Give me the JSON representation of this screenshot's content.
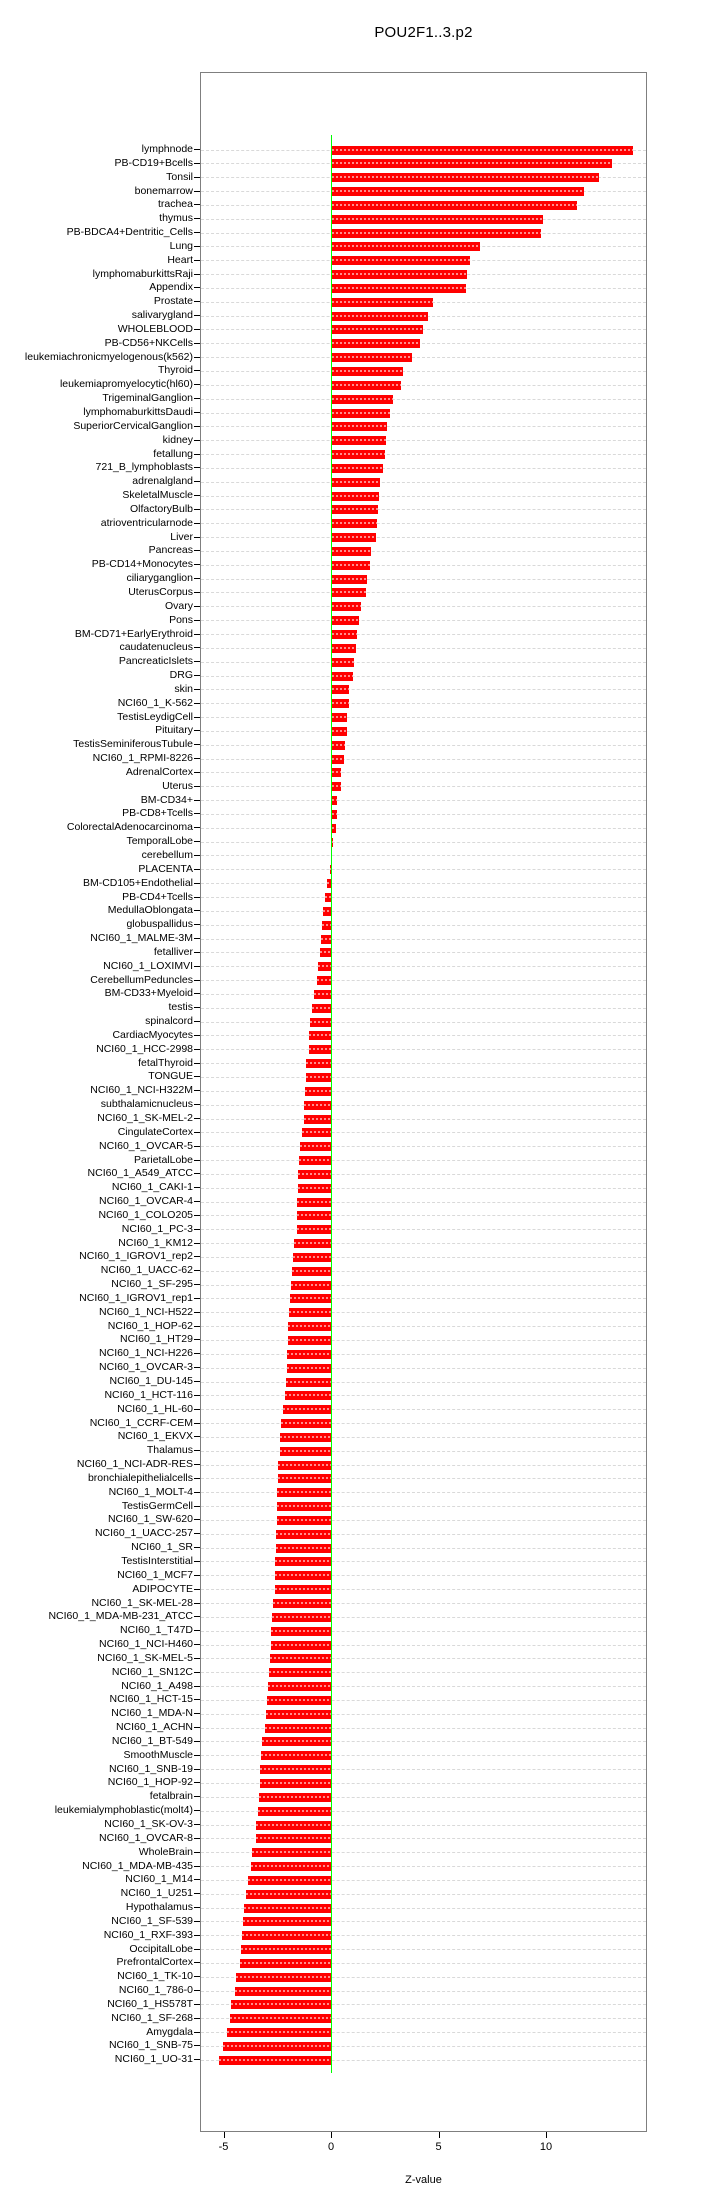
{
  "page": {
    "background": "#ffffff"
  },
  "chart_data": {
    "type": "bar",
    "orientation": "horizontal",
    "title": "POU2F1..3.p2",
    "xlabel": "Z-value",
    "x_tick_values": [
      -5,
      0,
      5,
      10
    ],
    "x_tick_labels": [
      "-5",
      "0",
      "5",
      "10"
    ],
    "xlim": [
      -6.1,
      14.7
    ],
    "grid": true,
    "legend": "none",
    "colors": {
      "bar": "#ff0000",
      "zero_line": "#00ff00",
      "grid": "#d9d9d9",
      "axis": "#7f7f7f",
      "text": "#000000"
    },
    "categories": [
      "lymphnode",
      "PB-CD19+Bcells",
      "Tonsil",
      "bonemarrow",
      "trachea",
      "thymus",
      "PB-BDCA4+Dentritic_Cells",
      "Lung",
      "Heart",
      "lymphomaburkittsRaji",
      "Appendix",
      "Prostate",
      "salivarygland",
      "WHOLEBLOOD",
      "PB-CD56+NKCells",
      "leukemiachronicmyelogenous(k562)",
      "Thyroid",
      "leukemiapromyelocytic(hl60)",
      "TrigeminalGanglion",
      "lymphomaburkittsDaudi",
      "SuperiorCervicalGanglion",
      "kidney",
      "fetallung",
      "721_B_lymphoblasts",
      "adrenalgland",
      "SkeletalMuscle",
      "OlfactoryBulb",
      "atrioventricularnode",
      "Liver",
      "Pancreas",
      "PB-CD14+Monocytes",
      "ciliaryganglion",
      "UterusCorpus",
      "Ovary",
      "Pons",
      "BM-CD71+EarlyErythroid",
      "caudatenucleus",
      "PancreaticIslets",
      "DRG",
      "skin",
      "NCI60_1_K-562",
      "TestisLeydigCell",
      "Pituitary",
      "TestisSeminiferousTubule",
      "NCI60_1_RPMI-8226",
      "AdrenalCortex",
      "Uterus",
      "BM-CD34+",
      "PB-CD8+Tcells",
      "ColorectalAdenocarcinoma",
      "TemporalLobe",
      "cerebellum",
      "PLACENTA",
      "BM-CD105+Endothelial",
      "PB-CD4+Tcells",
      "MedullaOblongata",
      "globuspallidus",
      "NCI60_1_MALME-3M",
      "fetalliver",
      "NCI60_1_LOXIMVI",
      "CerebellumPeduncles",
      "BM-CD33+Myeloid",
      "testis",
      "spinalcord",
      "CardiacMyocytes",
      "NCI60_1_HCC-2998",
      "fetalThyroid",
      "TONGUE",
      "NCI60_1_NCI-H322M",
      "subthalamicnucleus",
      "NCI60_1_SK-MEL-2",
      "CingulateCortex",
      "NCI60_1_OVCAR-5",
      "ParietalLobe",
      "NCI60_1_A549_ATCC",
      "NCI60_1_CAKI-1",
      "NCI60_1_OVCAR-4",
      "NCI60_1_COLO205",
      "NCI60_1_PC-3",
      "NCI60_1_KM12",
      "NCI60_1_IGROV1_rep2",
      "NCI60_1_UACC-62",
      "NCI60_1_SF-295",
      "NCI60_1_IGROV1_rep1",
      "NCI60_1_NCI-H522",
      "NCI60_1_HOP-62",
      "NCI60_1_HT29",
      "NCI60_1_NCI-H226",
      "NCI60_1_OVCAR-3",
      "NCI60_1_DU-145",
      "NCI60_1_HCT-116",
      "NCI60_1_HL-60",
      "NCI60_1_CCRF-CEM",
      "NCI60_1_EKVX",
      "Thalamus",
      "NCI60_1_NCI-ADR-RES",
      "bronchialepithelialcells",
      "NCI60_1_MOLT-4",
      "TestisGermCell",
      "NCI60_1_SW-620",
      "NCI60_1_UACC-257",
      "NCI60_1_SR",
      "TestisInterstitial",
      "NCI60_1_MCF7",
      "ADIPOCYTE",
      "NCI60_1_SK-MEL-28",
      "NCI60_1_MDA-MB-231_ATCC",
      "NCI60_1_T47D",
      "NCI60_1_NCI-H460",
      "NCI60_1_SK-MEL-5",
      "NCI60_1_SN12C",
      "NCI60_1_A498",
      "NCI60_1_HCT-15",
      "NCI60_1_MDA-N",
      "NCI60_1_ACHN",
      "NCI60_1_BT-549",
      "SmoothMuscle",
      "NCI60_1_SNB-19",
      "NCI60_1_HOP-92",
      "fetalbrain",
      "leukemialymphoblastic(molt4)",
      "NCI60_1_SK-OV-3",
      "NCI60_1_OVCAR-8",
      "WholeBrain",
      "NCI60_1_MDA-MB-435",
      "NCI60_1_M14",
      "NCI60_1_U251",
      "Hypothalamus",
      "NCI60_1_SF-539",
      "NCI60_1_RXF-393",
      "OccipitalLobe",
      "PrefrontalCortex",
      "NCI60_1_TK-10",
      "NCI60_1_786-0",
      "NCI60_1_HS578T",
      "NCI60_1_SF-268",
      "Amygdala",
      "NCI60_1_SNB-75",
      "NCI60_1_UO-31"
    ],
    "values": [
      14.0,
      13.0,
      12.4,
      11.7,
      11.4,
      9.8,
      9.7,
      6.9,
      6.4,
      6.3,
      6.25,
      4.7,
      4.45,
      4.25,
      4.1,
      3.7,
      3.3,
      3.2,
      2.85,
      2.7,
      2.55,
      2.5,
      2.45,
      2.35,
      2.25,
      2.2,
      2.15,
      2.1,
      2.05,
      1.8,
      1.75,
      1.62,
      1.58,
      1.36,
      1.24,
      1.16,
      1.12,
      1.0,
      0.98,
      0.8,
      0.78,
      0.72,
      0.7,
      0.6,
      0.55,
      0.43,
      0.4,
      0.24,
      0.22,
      0.2,
      0.04,
      -0.03,
      -0.08,
      -0.23,
      -0.34,
      -0.43,
      -0.45,
      -0.5,
      -0.56,
      -0.65,
      -0.72,
      -0.85,
      -0.95,
      -1.04,
      -1.05,
      -1.09,
      -1.21,
      -1.22,
      -1.27,
      -1.29,
      -1.32,
      -1.38,
      -1.5,
      -1.52,
      -1.58,
      -1.6,
      -1.61,
      -1.63,
      -1.64,
      -1.75,
      -1.81,
      -1.88,
      -1.89,
      -1.94,
      -1.98,
      -2.03,
      -2.06,
      -2.08,
      -2.1,
      -2.15,
      -2.17,
      -2.28,
      -2.37,
      -2.42,
      -2.44,
      -2.49,
      -2.51,
      -2.54,
      -2.56,
      -2.57,
      -2.59,
      -2.61,
      -2.63,
      -2.65,
      -2.67,
      -2.74,
      -2.78,
      -2.83,
      -2.85,
      -2.9,
      -2.95,
      -2.98,
      -3.02,
      -3.05,
      -3.1,
      -3.26,
      -3.3,
      -3.35,
      -3.36,
      -3.38,
      -3.43,
      -3.53,
      -3.55,
      -3.74,
      -3.78,
      -3.89,
      -4.0,
      -4.08,
      -4.15,
      -4.2,
      -4.23,
      -4.28,
      -4.45,
      -4.51,
      -4.7,
      -4.73,
      -4.87,
      -5.09,
      -5.26
    ]
  }
}
